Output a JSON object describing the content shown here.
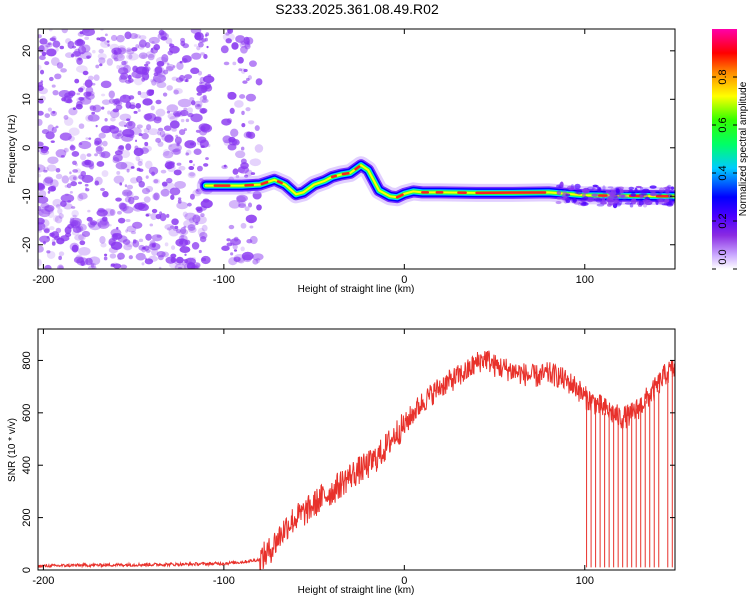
{
  "title": "S233.2025.361.08.49.R02",
  "colors": {
    "snr_line": "#e8312b",
    "noise": "#8a38f0",
    "frame": "#000000"
  },
  "chart_data": [
    {
      "type": "heatmap",
      "name": "spectrogram",
      "xlabel": "Height of straight line (km)",
      "ylabel": "Frequency (Hz)",
      "xlim": [
        -203,
        150
      ],
      "ylim": [
        -25,
        24.5
      ],
      "xticks": [
        -200,
        -100,
        0,
        100
      ],
      "xtick_labels": [
        "-200",
        "-100",
        "0",
        "100"
      ],
      "yticks": [
        20,
        10,
        0,
        -10,
        -20
      ],
      "ytick_labels": [
        "20",
        "10",
        "0",
        "-10",
        "-20"
      ],
      "grid": false,
      "trace": {
        "description_hz_vs_km": true,
        "x": [
          -110,
          -100,
          -90,
          -80,
          -72,
          -66,
          -60,
          -56,
          -50,
          -44,
          -40,
          -35,
          -30,
          -24,
          -20,
          -14,
          -8,
          -4,
          0,
          5,
          10,
          20,
          40,
          60,
          80,
          100,
          120,
          150
        ],
        "y": [
          -7.8,
          -7.8,
          -7.8,
          -7.6,
          -6.6,
          -7.6,
          -9.6,
          -9.2,
          -7.6,
          -6.8,
          -6.0,
          -5.5,
          -5.2,
          -3.6,
          -4.6,
          -8.8,
          -10.0,
          -10.2,
          -9.5,
          -9.0,
          -9.2,
          -9.2,
          -9.3,
          -9.3,
          -9.2,
          -9.8,
          -9.9,
          -10.0
        ]
      },
      "colorbar": {
        "label": "Normalized spectral amplitude",
        "range": [
          0,
          1
        ],
        "ticks": [
          0.0,
          0.2,
          0.4,
          0.6,
          0.8
        ],
        "tick_labels": [
          "0.0",
          "0.2",
          "0.4",
          "0.6",
          "0.8"
        ],
        "colormap": "rainbow (violet → blue → cyan → green → yellow → red → magenta)"
      }
    },
    {
      "type": "line",
      "name": "snr",
      "xlabel": "Height of straight line (km)",
      "ylabel": "SNR (10 * v/v)",
      "xlim": [
        -203,
        150
      ],
      "ylim": [
        0,
        920
      ],
      "xticks": [
        -200,
        -100,
        0,
        100
      ],
      "xtick_labels": [
        "-200",
        "-100",
        "0",
        "100"
      ],
      "yticks": [
        0,
        200,
        400,
        600,
        800
      ],
      "ytick_labels": [
        "0",
        "200",
        "400",
        "600",
        "800"
      ],
      "grid": false,
      "series": [
        {
          "name": "SNR",
          "x": [
            -203,
            -180,
            -150,
            -120,
            -100,
            -90,
            -80,
            -75,
            -70,
            -65,
            -60,
            -55,
            -50,
            -45,
            -40,
            -35,
            -30,
            -25,
            -20,
            -15,
            -10,
            -5,
            0,
            5,
            10,
            15,
            20,
            25,
            30,
            35,
            40,
            45,
            50,
            55,
            60,
            65,
            70,
            75,
            80,
            85,
            90,
            95,
            100,
            105,
            110,
            115,
            120,
            125,
            130,
            135,
            140,
            145,
            150
          ],
          "y": [
            15,
            18,
            20,
            22,
            25,
            30,
            40,
            70,
            120,
            170,
            200,
            220,
            250,
            280,
            300,
            330,
            360,
            380,
            400,
            430,
            470,
            520,
            550,
            600,
            640,
            670,
            700,
            720,
            740,
            760,
            790,
            810,
            780,
            770,
            760,
            750,
            740,
            740,
            750,
            740,
            720,
            700,
            660,
            640,
            620,
            600,
            580,
            590,
            620,
            660,
            700,
            750,
            770
          ]
        }
      ],
      "dropouts_x": [
        101,
        103.5,
        106,
        108.5,
        111,
        113.5,
        116,
        118.5,
        121,
        123.5,
        126,
        128.5,
        131,
        133.5,
        136,
        138.5,
        141,
        146,
        148.5
      ]
    }
  ]
}
